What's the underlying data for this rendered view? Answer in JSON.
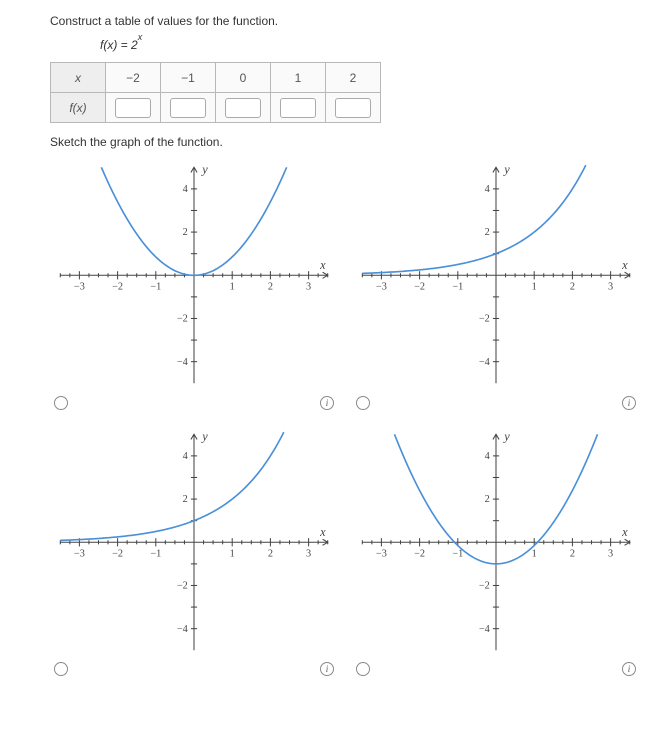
{
  "instructions": {
    "table_prompt": "Construct a table of values for the function.",
    "sketch_prompt": "Sketch the graph of the function."
  },
  "formula": {
    "prefix": "f(x) = 2",
    "exponent": "x"
  },
  "table": {
    "row_label_x": "x",
    "row_label_fx": "f(x)",
    "x_values": [
      "−2",
      "−1",
      "0",
      "1",
      "2"
    ],
    "fx_values": [
      "",
      "",
      "",
      "",
      ""
    ]
  },
  "chart_common": {
    "x_ticks": [
      -3,
      -2,
      -1,
      1,
      2,
      3
    ],
    "y_ticks": [
      -4,
      -2,
      2,
      4
    ],
    "x_label": "x",
    "y_label": "y",
    "axis_color": "#444444",
    "curve_color": "#4a90d9",
    "xlim": [
      -3.5,
      3.5
    ],
    "ylim": [
      -5,
      5
    ]
  },
  "charts": [
    {
      "id": "chart-a",
      "type": "parabola_up_origin"
    },
    {
      "id": "chart-b",
      "type": "exp_growth_through_0_1_with_left_asymptote"
    },
    {
      "id": "chart-c",
      "type": "exp_growth_through_0_1"
    },
    {
      "id": "chart-d",
      "type": "parabola_up_vertex_0_neg1"
    }
  ],
  "radio_info_glyph": "i"
}
